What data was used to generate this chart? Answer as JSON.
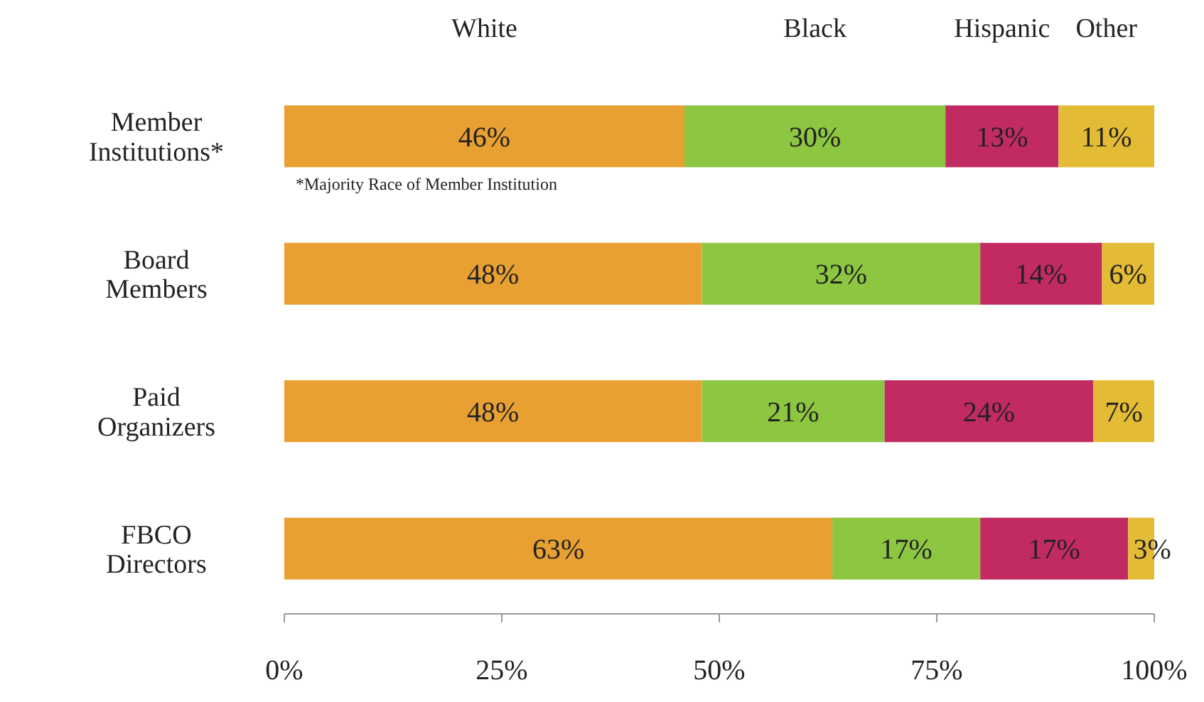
{
  "chart_data": {
    "type": "bar",
    "orientation": "horizontal",
    "stacked": true,
    "categories": [
      "Member Institutions*",
      "Board Members",
      "Paid Organizers",
      "FBCO Directors"
    ],
    "series": [
      {
        "name": "White",
        "color": "#e9a032",
        "values": [
          46,
          48,
          48,
          63
        ],
        "value_labels": [
          "46%",
          "48%",
          "48%",
          "63%"
        ]
      },
      {
        "name": "Black",
        "color": "#8dc641",
        "values": [
          30,
          32,
          21,
          17
        ],
        "value_labels": [
          "30%",
          "32%",
          "21%",
          "17%"
        ]
      },
      {
        "name": "Hispanic",
        "color": "#c22a62",
        "values": [
          13,
          14,
          24,
          17
        ],
        "value_labels": [
          "13%",
          "14%",
          "24%",
          "17%"
        ]
      },
      {
        "name": "Other",
        "color": "#e3bb34",
        "values": [
          11,
          6,
          7,
          3
        ],
        "value_labels": [
          "11%",
          "6%",
          "7%",
          "3%"
        ]
      }
    ],
    "xlim": [
      0,
      100
    ],
    "xticks": [
      {
        "value": 0,
        "label": "0%"
      },
      {
        "value": 25,
        "label": "25%"
      },
      {
        "value": 50,
        "label": "50%"
      },
      {
        "value": 75,
        "label": "75%"
      },
      {
        "value": 100,
        "label": "100%"
      }
    ],
    "legend": "top",
    "annotations": [
      "*Majority Race of Member Institution"
    ]
  }
}
